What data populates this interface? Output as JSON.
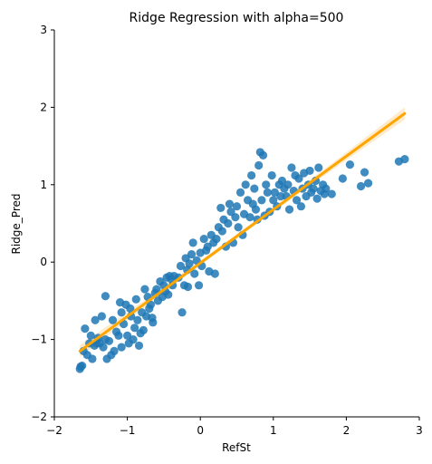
{
  "chart_data": {
    "type": "scatter",
    "title": "Ridge Regression with alpha=500",
    "xlabel": "RefSt",
    "ylabel": "Ridge_Pred",
    "xlim": [
      -2,
      3
    ],
    "ylim": [
      -2,
      3
    ],
    "xticks": [
      -2,
      -1,
      0,
      1,
      2,
      3
    ],
    "yticks": [
      -2,
      -1,
      0,
      1,
      2,
      3
    ],
    "grid": false,
    "colors": {
      "points": "#1f77b4",
      "fit_line": "#ffa500",
      "ci_band": "#ffe6bf"
    },
    "series": [
      {
        "kind": "points",
        "points": [
          [
            -1.65,
            -1.38
          ],
          [
            -1.64,
            -1.35
          ],
          [
            -1.62,
            -1.34
          ],
          [
            -1.6,
            -1.15
          ],
          [
            -1.58,
            -0.86
          ],
          [
            -1.55,
            -1.2
          ],
          [
            -1.52,
            -1.05
          ],
          [
            -1.5,
            -0.95
          ],
          [
            -1.48,
            -1.25
          ],
          [
            -1.45,
            -1.08
          ],
          [
            -1.44,
            -0.75
          ],
          [
            -1.42,
            -1.05
          ],
          [
            -1.4,
            -0.98
          ],
          [
            -1.38,
            -1.05
          ],
          [
            -1.35,
            -0.7
          ],
          [
            -1.33,
            -1.1
          ],
          [
            -1.3,
            -1.0
          ],
          [
            -1.3,
            -0.44
          ],
          [
            -1.28,
            -1.25
          ],
          [
            -1.25,
            -1.02
          ],
          [
            -1.22,
            -1.2
          ],
          [
            -1.2,
            -0.75
          ],
          [
            -1.18,
            -1.15
          ],
          [
            -1.15,
            -0.9
          ],
          [
            -1.12,
            -0.95
          ],
          [
            -1.1,
            -0.52
          ],
          [
            -1.08,
            -0.65
          ],
          [
            -1.08,
            -1.1
          ],
          [
            -1.05,
            -0.8
          ],
          [
            -1.02,
            -0.55
          ],
          [
            -1.0,
            -0.95
          ],
          [
            -0.98,
            -1.05
          ],
          [
            -0.96,
            -0.6
          ],
          [
            -0.95,
            -0.7
          ],
          [
            -0.92,
            -1.0
          ],
          [
            -0.9,
            -0.85
          ],
          [
            -0.88,
            -0.48
          ],
          [
            -0.86,
            -0.75
          ],
          [
            -0.84,
            -1.08
          ],
          [
            -0.82,
            -0.92
          ],
          [
            -0.8,
            -0.65
          ],
          [
            -0.78,
            -0.88
          ],
          [
            -0.76,
            -0.35
          ],
          [
            -0.74,
            -0.7
          ],
          [
            -0.72,
            -0.45
          ],
          [
            -0.7,
            -0.6
          ],
          [
            -0.68,
            -0.55
          ],
          [
            -0.66,
            -0.72
          ],
          [
            -0.65,
            -0.78
          ],
          [
            -0.62,
            -0.4
          ],
          [
            -0.6,
            -0.35
          ],
          [
            -0.58,
            -0.5
          ],
          [
            -0.55,
            -0.25
          ],
          [
            -0.52,
            -0.45
          ],
          [
            -0.5,
            -0.3
          ],
          [
            -0.48,
            -0.38
          ],
          [
            -0.46,
            -0.2
          ],
          [
            -0.44,
            -0.42
          ],
          [
            -0.42,
            -0.18
          ],
          [
            -0.4,
            -0.22
          ],
          [
            -0.38,
            -0.3
          ],
          [
            -0.36,
            -0.18
          ],
          [
            -0.3,
            -0.2
          ],
          [
            -0.27,
            -0.05
          ],
          [
            -0.25,
            -0.65
          ],
          [
            -0.22,
            -0.3
          ],
          [
            -0.2,
            0.05
          ],
          [
            -0.18,
            -0.1
          ],
          [
            -0.17,
            -0.32
          ],
          [
            -0.15,
            -0.02
          ],
          [
            -0.12,
            0.1
          ],
          [
            -0.1,
            0.25
          ],
          [
            -0.08,
            -0.15
          ],
          [
            -0.05,
            0.02
          ],
          [
            -0.02,
            -0.3
          ],
          [
            0.0,
            0.12
          ],
          [
            0.02,
            -0.05
          ],
          [
            0.05,
            0.3
          ],
          [
            0.08,
            0.15
          ],
          [
            0.1,
            0.2
          ],
          [
            0.12,
            -0.12
          ],
          [
            0.15,
            0.35
          ],
          [
            0.18,
            0.25
          ],
          [
            0.2,
            -0.15
          ],
          [
            0.22,
            0.3
          ],
          [
            0.25,
            0.45
          ],
          [
            0.28,
            0.7
          ],
          [
            0.3,
            0.4
          ],
          [
            0.32,
            0.55
          ],
          [
            0.35,
            0.2
          ],
          [
            0.38,
            0.5
          ],
          [
            0.4,
            0.75
          ],
          [
            0.42,
            0.65
          ],
          [
            0.45,
            0.25
          ],
          [
            0.48,
            0.58
          ],
          [
            0.5,
            0.72
          ],
          [
            0.52,
            0.45
          ],
          [
            0.55,
            0.9
          ],
          [
            0.58,
            0.35
          ],
          [
            0.6,
            0.62
          ],
          [
            0.62,
            1.0
          ],
          [
            0.65,
            0.8
          ],
          [
            0.68,
            0.58
          ],
          [
            0.7,
            1.12
          ],
          [
            0.72,
            0.75
          ],
          [
            0.74,
            0.95
          ],
          [
            0.76,
            0.68
          ],
          [
            0.78,
            0.55
          ],
          [
            0.8,
            1.25
          ],
          [
            0.82,
            1.42
          ],
          [
            0.84,
            0.8
          ],
          [
            0.86,
            1.38
          ],
          [
            0.88,
            0.6
          ],
          [
            0.9,
            1.0
          ],
          [
            0.92,
            0.9
          ],
          [
            0.95,
            0.65
          ],
          [
            0.98,
            1.12
          ],
          [
            1.0,
            0.8
          ],
          [
            1.02,
            0.9
          ],
          [
            1.05,
            0.72
          ],
          [
            1.08,
            1.0
          ],
          [
            1.1,
            0.85
          ],
          [
            1.12,
            1.05
          ],
          [
            1.15,
            0.95
          ],
          [
            1.18,
            0.85
          ],
          [
            1.2,
            1.0
          ],
          [
            1.22,
            0.68
          ],
          [
            1.25,
            1.22
          ],
          [
            1.28,
            0.92
          ],
          [
            1.3,
            1.12
          ],
          [
            1.32,
            0.8
          ],
          [
            1.35,
            1.08
          ],
          [
            1.38,
            0.72
          ],
          [
            1.4,
            0.95
          ],
          [
            1.42,
            1.15
          ],
          [
            1.45,
            0.85
          ],
          [
            1.48,
            1.0
          ],
          [
            1.5,
            1.18
          ],
          [
            1.52,
            0.9
          ],
          [
            1.55,
            0.95
          ],
          [
            1.58,
            1.05
          ],
          [
            1.6,
            0.82
          ],
          [
            1.62,
            1.22
          ],
          [
            1.65,
            0.92
          ],
          [
            1.68,
            1.0
          ],
          [
            1.7,
            0.88
          ],
          [
            1.72,
            0.95
          ],
          [
            1.8,
            0.88
          ],
          [
            1.95,
            1.08
          ],
          [
            2.05,
            1.26
          ],
          [
            2.2,
            0.98
          ],
          [
            2.25,
            1.16
          ],
          [
            2.3,
            1.02
          ],
          [
            2.72,
            1.3
          ],
          [
            2.8,
            1.33
          ]
        ]
      },
      {
        "kind": "fit_line",
        "x": [
          -1.65,
          2.8
        ],
        "y": [
          -1.15,
          1.92
        ]
      }
    ]
  }
}
